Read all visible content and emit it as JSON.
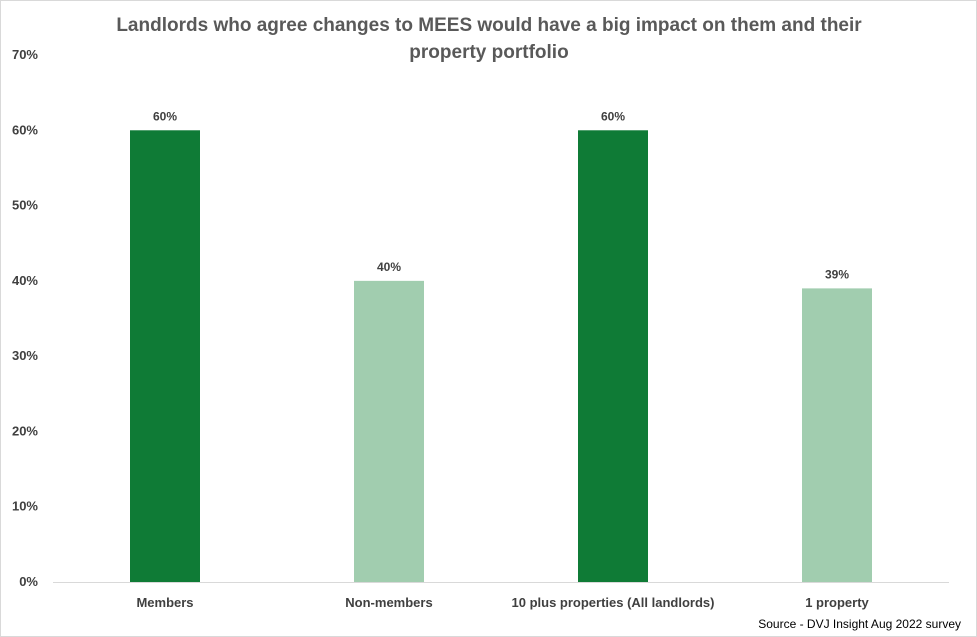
{
  "chart_data": {
    "type": "bar",
    "title_lines": [
      "Landlords  who agree changes to MEES would have a big impact on them and their",
      "property portfolio"
    ],
    "categories": [
      "Members",
      "Non-members",
      "10 plus properties (All landlords)",
      "1 property"
    ],
    "values": [
      60,
      40,
      60,
      39
    ],
    "data_labels": [
      "60%",
      "40%",
      "60%",
      "39%"
    ],
    "bar_colors": [
      "#0f7b36",
      "#a1cdaf",
      "#0f7b36",
      "#a1cdaf"
    ],
    "ylim": [
      0,
      70
    ],
    "yticks": [
      0,
      10,
      20,
      30,
      40,
      50,
      60,
      70
    ],
    "ytick_labels": [
      "0%",
      "10%",
      "20%",
      "30%",
      "40%",
      "50%",
      "60%",
      "70%"
    ],
    "grid": false,
    "legend": "none",
    "source": "Source - DVJ Insight Aug 2022 survey"
  }
}
